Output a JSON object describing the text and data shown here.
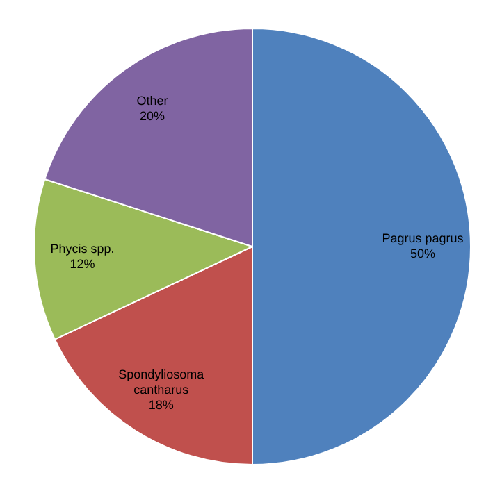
{
  "chart_data": {
    "type": "pie",
    "categories": [
      "Pagrus pagrus",
      "Spondyliosoma cantharus",
      "Phycis spp.",
      "Other"
    ],
    "values": [
      50,
      18,
      12,
      20
    ],
    "colors": [
      "#4f81bd",
      "#c0504d",
      "#9bbb59",
      "#8064a2"
    ],
    "value_labels": [
      "50%",
      "18%",
      "12%",
      "20%"
    ],
    "legend": false
  }
}
